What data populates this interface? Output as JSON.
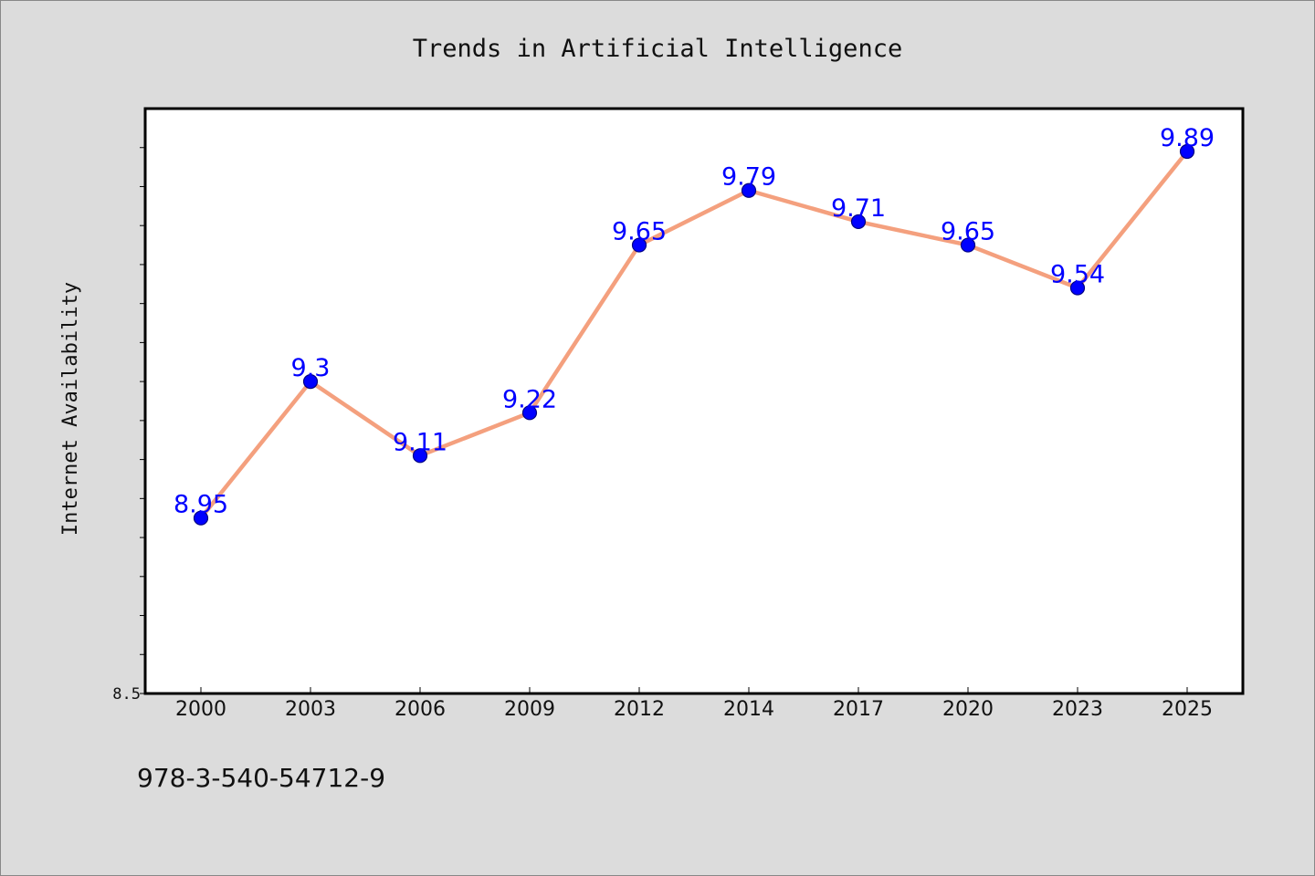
{
  "chart_data": {
    "type": "line",
    "title": "Trends in Artificial Intelligence",
    "xlabel": "",
    "ylabel": "Internet Availability",
    "categories": [
      "2000",
      "2003",
      "2006",
      "2009",
      "2012",
      "2014",
      "2017",
      "2020",
      "2023",
      "2025"
    ],
    "series": [
      {
        "values": [
          8.95,
          9.3,
          9.11,
          9.22,
          9.65,
          9.79,
          9.71,
          9.65,
          9.54,
          9.89
        ]
      }
    ],
    "data_labels": [
      "8.95",
      "9.3",
      "9.11",
      "9.22",
      "9.65",
      "9.79",
      "9.71",
      "9.65",
      "9.54",
      "9.89"
    ],
    "ylim": [
      8.5,
      10.0
    ],
    "y_ticks": [
      8.5
    ],
    "y_tick_labels": [
      "8.5"
    ],
    "y_minor_tick_step": 0.1,
    "grid": false,
    "legend": "none",
    "colors": {
      "line": "#f4a07e",
      "marker": "#0000ff",
      "marker_edge": "#000080",
      "data_label": "#0000ff",
      "plot_background": "#ffffff",
      "figure_background": "#dcdcdc"
    }
  },
  "footer": {
    "code": "978-3-540-54712-9"
  }
}
